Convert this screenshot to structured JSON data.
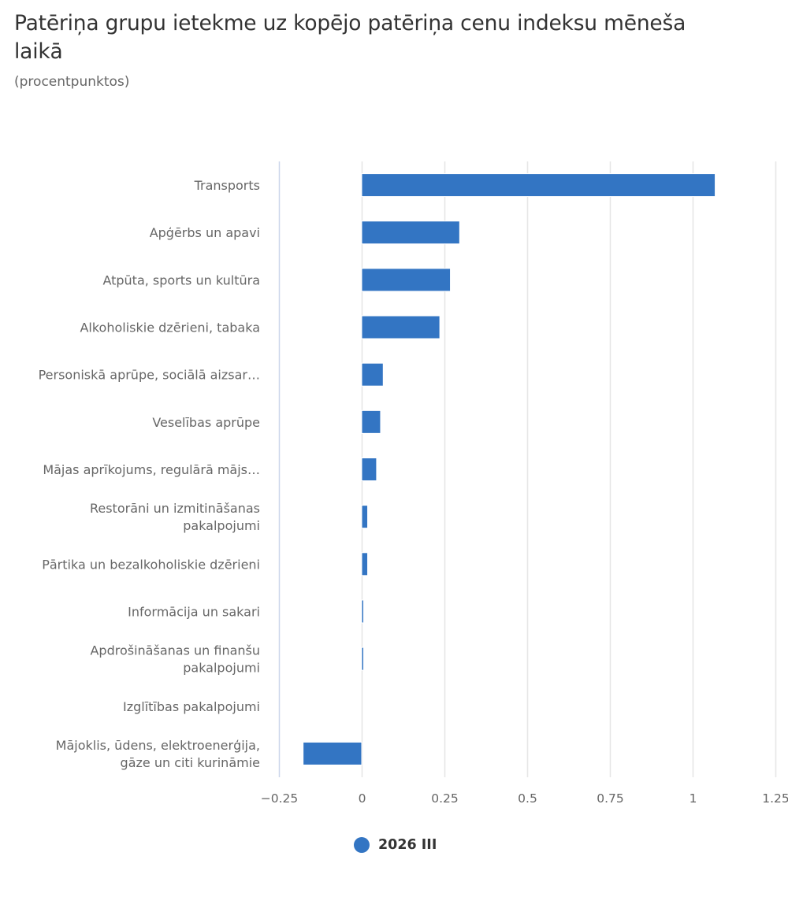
{
  "header": {
    "title": "Patēriņa grupu ietekme uz kopējo patēriņa cenu indeksu mēneša laikā",
    "subtitle": "(procentpunktos)"
  },
  "colors": {
    "series": "#3375C3",
    "axis_line": "#CCD6EB",
    "grid_line": "#E6E6E6",
    "label_text": "#666666",
    "title_text": "#333333"
  },
  "chart_data": {
    "type": "bar",
    "orientation": "horizontal",
    "title": "Patēriņa grupu ietekme uz kopējo patēriņa cenu indeksu mēneša laikā",
    "subtitle": "(procentpunktos)",
    "xlabel": "",
    "ylabel": "",
    "categories": [
      [
        "Transports"
      ],
      [
        "Apģērbs un apavi"
      ],
      [
        "Atpūta, sports un kultūra"
      ],
      [
        "Alkoholiskie dzērieni, tabaka"
      ],
      [
        "Personiskā aprūpe, sociālā aizsar…"
      ],
      [
        "Veselības aprūpe"
      ],
      [
        "Mājas aprīkojums, regulārā mājs…"
      ],
      [
        "Restorāni un izmitināšanas",
        "pakalpojumi"
      ],
      [
        "Pārtika un bezalkoholiskie dzērieni"
      ],
      [
        "Informācija un sakari"
      ],
      [
        "Apdrošināšanas un finanšu",
        "pakalpojumi"
      ],
      [
        "Izglītības pakalpojumi"
      ],
      [
        "Mājoklis, ūdens, elektroenerģija,",
        "gāze un citi kurināmie"
      ]
    ],
    "series": [
      {
        "name": "2026 III",
        "values": [
          1.068,
          0.296,
          0.268,
          0.236,
          0.065,
          0.057,
          0.045,
          0.018,
          0.018,
          0.006,
          0.006,
          0.0,
          -0.177
        ]
      }
    ],
    "xlim": [
      -0.25,
      1.25
    ],
    "xticks": [
      -0.25,
      0,
      0.25,
      0.5,
      0.75,
      1,
      1.25
    ],
    "xtick_labels": [
      "−0.25",
      "0",
      "0.25",
      "0.5",
      "0.75",
      "1",
      "1.25"
    ],
    "grid": true,
    "legend": {
      "position": "bottom-center",
      "entries": [
        "2026 III"
      ]
    }
  },
  "legend": {
    "label": "2026 III"
  }
}
